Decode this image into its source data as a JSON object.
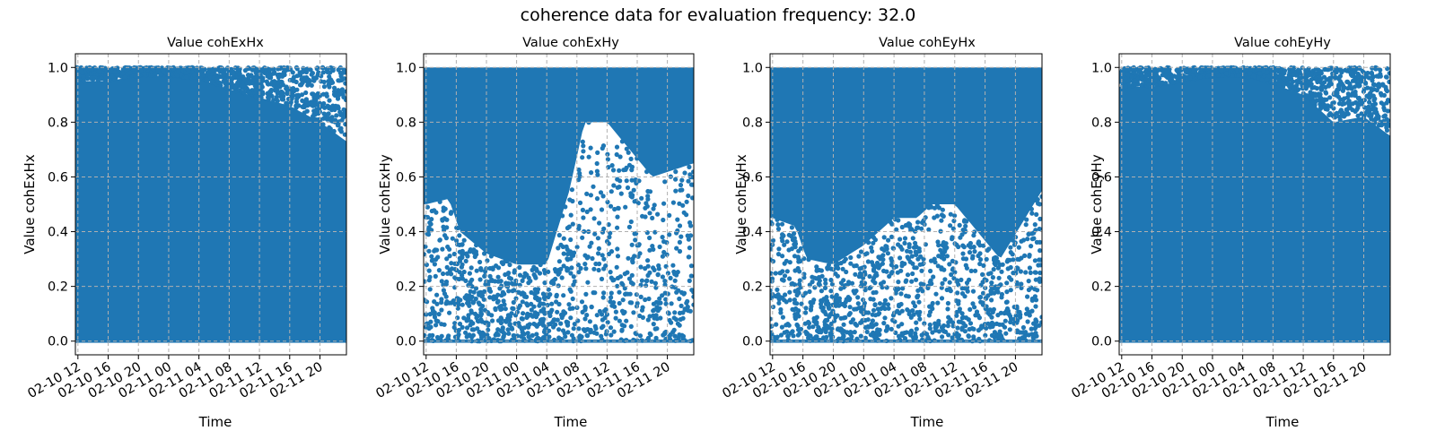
{
  "figure": {
    "suptitle": "coherence data for evaluation frequency: 32.0",
    "point_color": "#1f77b4",
    "grid_color": "#b0b0b0"
  },
  "chart_data": [
    {
      "type": "scatter",
      "title": "Value cohExHx",
      "xlabel": "Time",
      "ylabel": "Value cohExHx",
      "x_range": [
        "2010-02-10 11:40",
        "2010-02-11 23:30"
      ],
      "ylim": [
        -0.05,
        1.05
      ],
      "x_ticks": [
        "02-10 12",
        "02-10 16",
        "02-10 20",
        "02-11 00",
        "02-11 04",
        "02-11 08",
        "02-11 12",
        "02-11 16",
        "02-11 20"
      ],
      "y_ticks": [
        "0.0",
        "0.2",
        "0.4",
        "0.6",
        "0.8",
        "1.0"
      ],
      "grid": true,
      "density_profile": {
        "hours_from_0210_12": [
          0,
          4,
          8,
          12,
          16,
          20,
          24,
          28,
          32,
          35.5
        ],
        "dense_upper_bound": [
          0.95,
          0.95,
          0.97,
          0.97,
          0.96,
          0.92,
          0.89,
          0.86,
          0.8,
          0.73
        ],
        "lower_gap_bound": [
          0,
          0,
          0,
          0,
          0,
          0,
          0,
          0,
          0,
          0
        ]
      }
    },
    {
      "type": "scatter",
      "title": "Value cohExHy",
      "xlabel": "Time",
      "ylabel": "Value cohExHy",
      "x_range": [
        "2010-02-10 11:40",
        "2010-02-11 23:30"
      ],
      "ylim": [
        -0.05,
        1.05
      ],
      "x_ticks": [
        "02-10 12",
        "02-10 16",
        "02-10 20",
        "02-11 00",
        "02-11 04",
        "02-11 08",
        "02-11 12",
        "02-11 16",
        "02-11 20"
      ],
      "y_ticks": [
        "0.0",
        "0.2",
        "0.4",
        "0.6",
        "0.8",
        "1.0"
      ],
      "grid": true,
      "density_profile": {
        "hours_from_0210_12": [
          0,
          3,
          4.5,
          8,
          12,
          16,
          19,
          21,
          24,
          27,
          30,
          35.5
        ],
        "dense_upper_bound": [
          1,
          1,
          1,
          1,
          1,
          1,
          1,
          1,
          1,
          1,
          1,
          1
        ],
        "lower_gap_bound": [
          0.5,
          0.52,
          0.4,
          0.32,
          0.28,
          0.28,
          0.55,
          0.8,
          0.8,
          0.7,
          0.6,
          0.65
        ]
      }
    },
    {
      "type": "scatter",
      "title": "Value cohEyHx",
      "xlabel": "Time",
      "ylabel": "Value cohEyHx",
      "x_range": [
        "2010-02-10 11:40",
        "2010-02-11 23:30"
      ],
      "ylim": [
        -0.05,
        1.05
      ],
      "x_ticks": [
        "02-10 12",
        "02-10 16",
        "02-10 20",
        "02-11 00",
        "02-11 04",
        "02-11 08",
        "02-11 12",
        "02-11 16",
        "02-11 20"
      ],
      "y_ticks": [
        "0.0",
        "0.2",
        "0.4",
        "0.6",
        "0.8",
        "1.0"
      ],
      "grid": true,
      "density_profile": {
        "hours_from_0210_12": [
          0,
          3,
          4.5,
          8,
          12,
          16,
          19,
          21,
          24,
          27,
          30,
          35.5
        ],
        "dense_upper_bound": [
          1,
          1,
          1,
          1,
          1,
          1,
          1,
          1,
          1,
          1,
          1,
          1
        ],
        "lower_gap_bound": [
          0.45,
          0.42,
          0.3,
          0.28,
          0.35,
          0.45,
          0.45,
          0.5,
          0.5,
          0.4,
          0.3,
          0.55
        ]
      }
    },
    {
      "type": "scatter",
      "title": "Value cohEyHy",
      "xlabel": "Time",
      "ylabel": "Value cohEyHy",
      "x_range": [
        "2010-02-10 11:40",
        "2010-02-11 23:30"
      ],
      "ylim": [
        -0.05,
        1.05
      ],
      "x_ticks": [
        "02-10 12",
        "02-10 16",
        "02-10 20",
        "02-11 00",
        "02-11 04",
        "02-11 08",
        "02-11 12",
        "02-11 16",
        "02-11 20"
      ],
      "y_ticks": [
        "0.0",
        "0.2",
        "0.4",
        "0.6",
        "0.8",
        "1.0"
      ],
      "grid": true,
      "density_profile": {
        "hours_from_0210_12": [
          0,
          4,
          8,
          12,
          16,
          20,
          24,
          28,
          32,
          35.5
        ],
        "dense_upper_bound": [
          0.93,
          0.93,
          0.95,
          0.97,
          0.97,
          0.94,
          0.9,
          0.8,
          0.82,
          0.75
        ],
        "lower_gap_bound": [
          0,
          0,
          0,
          0,
          0,
          0,
          0,
          0,
          0,
          0
        ]
      }
    }
  ]
}
